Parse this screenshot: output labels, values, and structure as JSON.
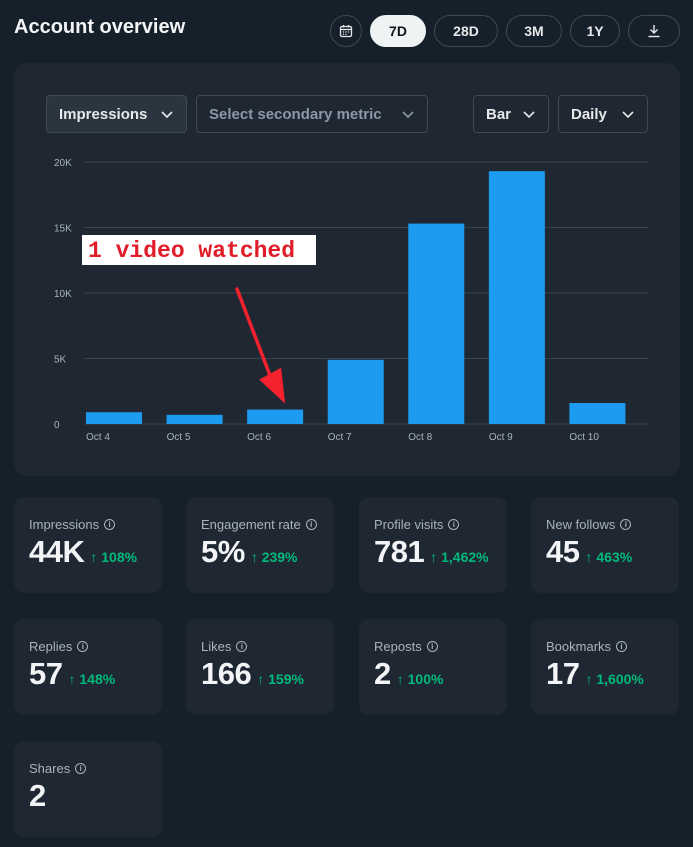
{
  "header": {
    "title": "Account overview",
    "ranges": [
      "7D",
      "28D",
      "3M",
      "1Y"
    ],
    "active_range": "7D",
    "calendar_icon": "calendar-icon",
    "download_icon": "download-icon"
  },
  "controls": {
    "primary_metric": "Impressions",
    "secondary_placeholder": "Select secondary metric",
    "chart_type": "Bar",
    "period": "Daily"
  },
  "chart_data": {
    "type": "bar",
    "categories": [
      "Oct 4",
      "Oct 5",
      "Oct 6",
      "Oct 7",
      "Oct 8",
      "Oct 9",
      "Oct 10"
    ],
    "values": [
      900,
      700,
      1100,
      4900,
      15300,
      19300,
      1600
    ],
    "y_ticks": [
      "0",
      "5K",
      "10K",
      "15K",
      "20K"
    ],
    "ylim": [
      0,
      20000
    ],
    "grid": true,
    "color": "#1d9bf0",
    "annotation": {
      "text": "1 video watched",
      "target_category": "Oct 6",
      "arrow_color": "#f4222f"
    }
  },
  "stats": [
    {
      "label": "Impressions",
      "value": "44K",
      "change": "↑ 108%"
    },
    {
      "label": "Engagement rate",
      "value": "5%",
      "change": "↑ 239%"
    },
    {
      "label": "Profile visits",
      "value": "781",
      "change": "↑ 1,462%"
    },
    {
      "label": "New follows",
      "value": "45",
      "change": "↑ 463%"
    },
    {
      "label": "Replies",
      "value": "57",
      "change": "↑ 148%"
    },
    {
      "label": "Likes",
      "value": "166",
      "change": "↑ 159%"
    },
    {
      "label": "Reposts",
      "value": "2",
      "change": "↑ 100%"
    },
    {
      "label": "Bookmarks",
      "value": "17",
      "change": "↑ 1,600%"
    },
    {
      "label": "Shares",
      "value": "2",
      "change": ""
    }
  ],
  "colors": {
    "accent": "#1d9bf0",
    "positive": "#00ba7c",
    "background": "#15202b",
    "card": "#1e2732"
  }
}
